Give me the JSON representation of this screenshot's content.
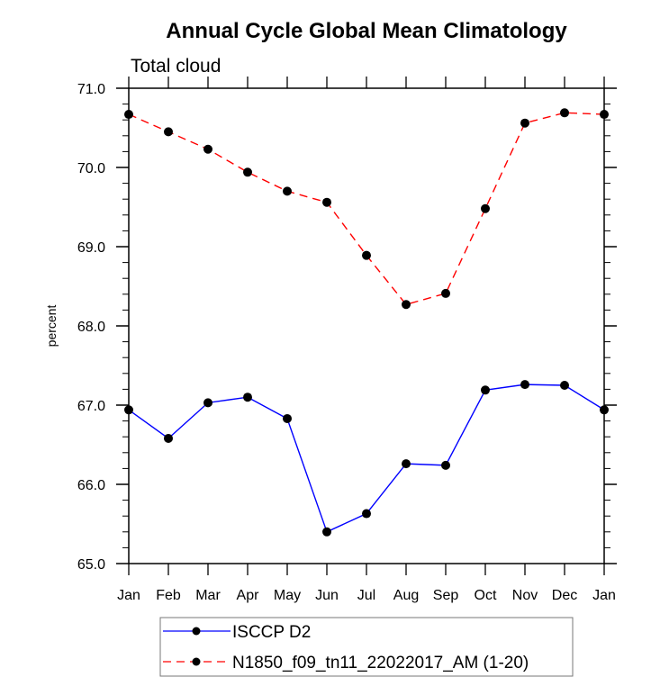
{
  "chart_data": {
    "type": "line",
    "title": "Annual Cycle Global Mean Climatology",
    "subtitle": "Total cloud",
    "xlabel": "",
    "ylabel": "percent",
    "categories": [
      "Jan",
      "Feb",
      "Mar",
      "Apr",
      "May",
      "Jun",
      "Jul",
      "Aug",
      "Sep",
      "Oct",
      "Nov",
      "Dec",
      "Jan"
    ],
    "ylim": [
      65.0,
      71.0
    ],
    "yticks": [
      65.0,
      66.0,
      67.0,
      68.0,
      69.0,
      70.0,
      71.0
    ],
    "ytick_labels": [
      "65.0",
      "66.0",
      "67.0",
      "68.0",
      "69.0",
      "70.0",
      "71.0"
    ],
    "y_minor_step": 0.2,
    "grid": false,
    "legend_position": "bottom-center",
    "series": [
      {
        "name": "ISCCP D2",
        "color": "#0000ff",
        "dash": "solid",
        "marker": "filled-circle",
        "values": [
          66.94,
          66.58,
          67.03,
          67.1,
          66.83,
          65.4,
          65.63,
          66.26,
          66.24,
          67.19,
          67.26,
          67.25,
          66.94
        ]
      },
      {
        "name": "N1850_f09_tn11_22022017_AM (1-20)",
        "color": "#ff0000",
        "dash": "dashed",
        "marker": "filled-circle",
        "values": [
          70.67,
          70.45,
          70.23,
          69.94,
          69.7,
          69.56,
          68.89,
          68.27,
          68.41,
          69.48,
          70.56,
          70.69,
          70.67
        ]
      }
    ]
  }
}
